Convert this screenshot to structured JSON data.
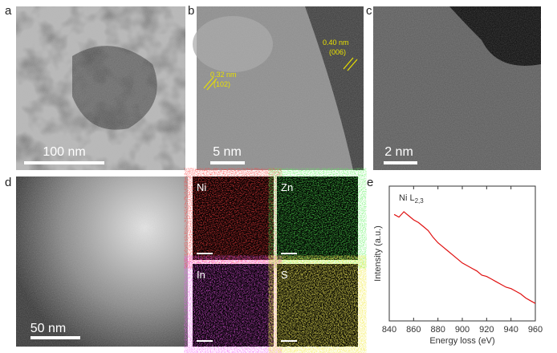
{
  "panels": {
    "a": {
      "letter": "a",
      "scale": "100 nm"
    },
    "b": {
      "letter": "b",
      "scale": "5 nm",
      "ann1": "0.32 nm",
      "ann1_hkl": "(102)",
      "ann2": "0.40 nm",
      "ann2_hkl": "(006)"
    },
    "c": {
      "letter": "c",
      "scale": "2 nm"
    },
    "d": {
      "letter": "d",
      "scale": "50 nm",
      "maps": [
        "Ni",
        "Zn",
        "In",
        "S"
      ]
    }
  },
  "chart_data": {
    "type": "line",
    "letter": "e",
    "annotation": "Ni L",
    "annotation_sub": "2,3",
    "xlabel": "Energy loss (eV)",
    "ylabel": "Intensity (a.u.)",
    "color": "#e01010",
    "x": [
      844,
      848,
      852,
      856,
      860,
      864,
      868,
      872,
      876,
      880,
      884,
      888,
      892,
      896,
      900,
      904,
      908,
      912,
      916,
      920,
      924,
      928,
      932,
      936,
      940,
      944,
      948,
      952,
      956,
      960
    ],
    "values": [
      0.79,
      0.77,
      0.81,
      0.78,
      0.75,
      0.73,
      0.7,
      0.67,
      0.62,
      0.58,
      0.55,
      0.52,
      0.49,
      0.46,
      0.43,
      0.41,
      0.39,
      0.37,
      0.34,
      0.33,
      0.31,
      0.29,
      0.27,
      0.25,
      0.24,
      0.22,
      0.2,
      0.17,
      0.15,
      0.13
    ],
    "xlim": [
      840,
      960
    ],
    "xticks": [
      840,
      860,
      880,
      900,
      920,
      940,
      960
    ],
    "ylim": [
      0,
      1
    ]
  }
}
